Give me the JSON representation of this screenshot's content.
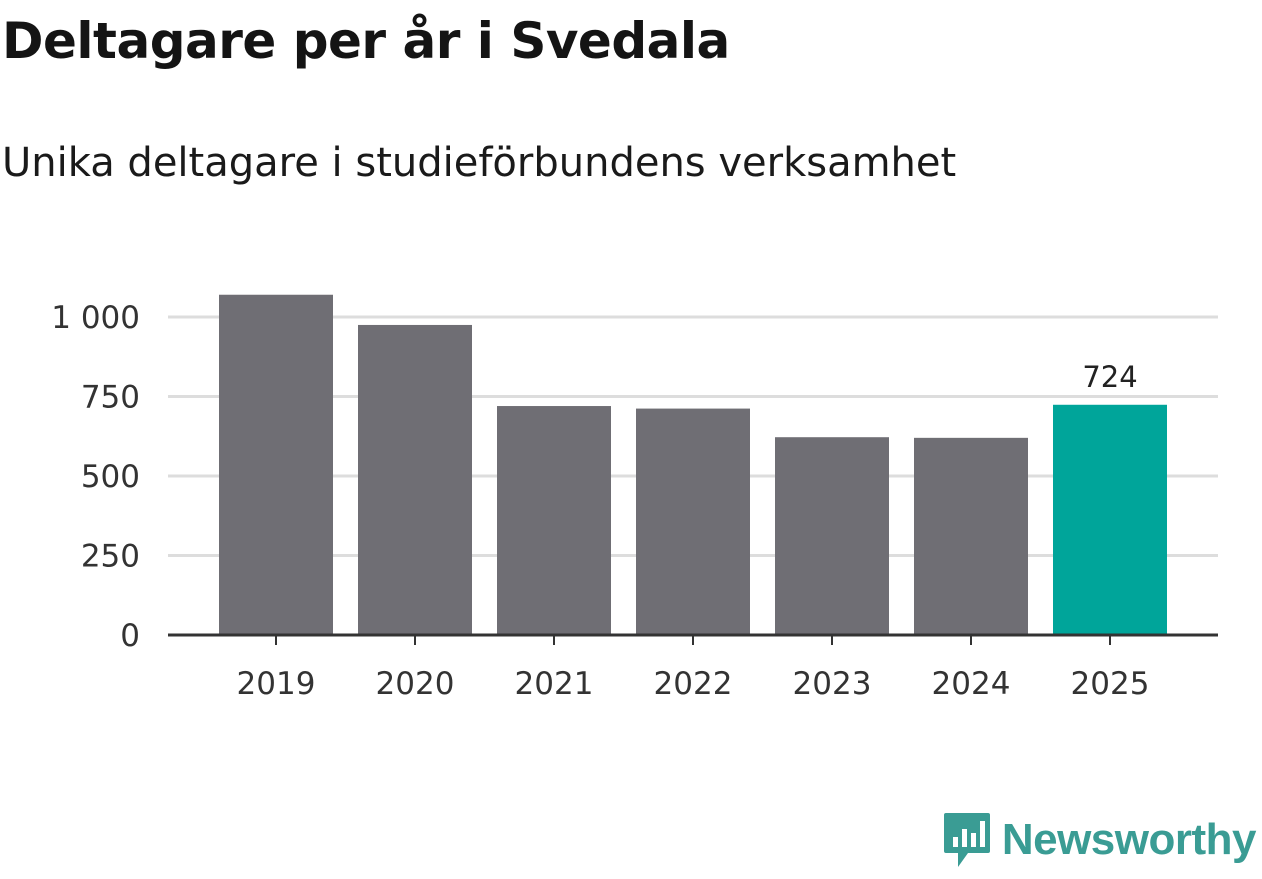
{
  "title": "Deltagare per år i Svedala",
  "subtitle": "Unika deltagare i studieförbundens verksamhet",
  "chart_data": {
    "type": "bar",
    "title": "Deltagare per år i Svedala",
    "subtitle": "Unika deltagare i studieförbundens verksamhet",
    "categories": [
      "2019",
      "2020",
      "2021",
      "2022",
      "2023",
      "2024",
      "2025"
    ],
    "values": [
      1070,
      975,
      720,
      712,
      622,
      620,
      724
    ],
    "highlight_index": 6,
    "highlight_label": "724",
    "ylim": [
      0,
      1000
    ],
    "yticks": [
      0,
      250,
      500,
      750,
      1000
    ],
    "ytick_labels": [
      "0",
      "250",
      "500",
      "750",
      "1 000"
    ],
    "xlabel": "",
    "ylabel": "",
    "grid": true,
    "colors": {
      "bar": "#6f6e74",
      "highlight": "#00a59a",
      "grid": "#dddddd",
      "axis": "#333333"
    }
  },
  "brand": {
    "name": "Newsworthy",
    "icon": "newsworthy-logo-icon",
    "color": "#3a9c94"
  }
}
